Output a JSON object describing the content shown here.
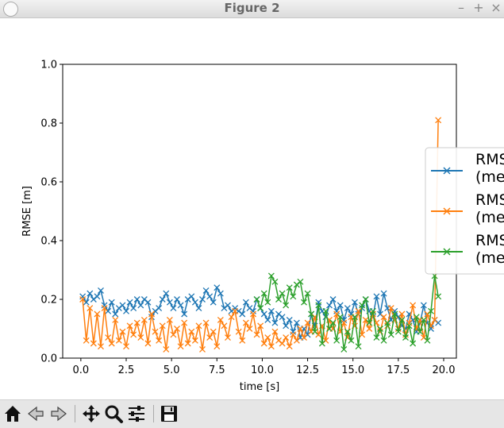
{
  "window": {
    "title": "Figure 2"
  },
  "window_buttons": [
    "–",
    "+",
    "×"
  ],
  "toolbar": {
    "buttons": [
      "home-icon",
      "back-icon",
      "forward-icon",
      "pan-icon",
      "zoom-icon",
      "configure-subplots-icon",
      "save-icon"
    ]
  },
  "chart_data": {
    "type": "line",
    "xlabel": "time [s]",
    "ylabel": "RMSE [m]",
    "xlim": [
      -1.0,
      20.7
    ],
    "ylim": [
      0.0,
      1.0
    ],
    "xticks": [
      "0.0",
      "2.5",
      "5.0",
      "7.5",
      "10.0",
      "12.5",
      "15.0",
      "17.5",
      "20.0"
    ],
    "yticks": [
      "0.0",
      "0.2",
      "0.4",
      "0.6",
      "0.8",
      "1.0"
    ],
    "legend_placement": "right (clipped)",
    "legend_entries": [
      [
        "RMS",
        "(me"
      ],
      [
        "RMS",
        "(me"
      ],
      [
        "RMS",
        "(me"
      ]
    ],
    "colors": [
      "#1f77b4",
      "#ff7f0e",
      "#2ca02c"
    ],
    "series": [
      {
        "x": [
          0.1,
          0.3,
          0.5,
          0.7,
          0.9,
          1.1,
          1.3,
          1.5,
          1.7,
          1.9,
          2.1,
          2.3,
          2.5,
          2.7,
          2.9,
          3.1,
          3.3,
          3.5,
          3.7,
          3.9,
          4.1,
          4.3,
          4.5,
          4.7,
          4.9,
          5.1,
          5.3,
          5.5,
          5.7,
          5.9,
          6.1,
          6.3,
          6.5,
          6.7,
          6.9,
          7.1,
          7.3,
          7.5,
          7.7,
          7.9,
          8.1,
          8.3,
          8.5,
          8.7,
          8.9,
          9.1,
          9.3,
          9.5,
          9.7,
          9.9,
          10.1,
          10.3,
          10.5,
          10.7,
          10.9,
          11.1,
          11.3,
          11.5,
          11.7,
          11.9,
          12.1,
          12.3,
          12.5,
          12.7,
          12.9,
          13.1,
          13.3,
          13.5,
          13.7,
          13.9,
          14.1,
          14.3,
          14.5,
          14.7,
          14.9,
          15.1,
          15.3,
          15.5,
          15.7,
          15.9,
          16.1,
          16.3,
          16.5,
          16.7,
          16.9,
          17.1,
          17.3,
          17.5,
          17.7,
          17.9,
          18.1,
          18.3,
          18.5,
          18.7,
          18.9,
          19.1,
          19.3,
          19.5,
          19.7
        ],
        "y": [
          0.21,
          0.19,
          0.22,
          0.2,
          0.21,
          0.23,
          0.18,
          0.16,
          0.19,
          0.15,
          0.17,
          0.18,
          0.16,
          0.19,
          0.17,
          0.2,
          0.18,
          0.2,
          0.19,
          0.14,
          0.16,
          0.17,
          0.2,
          0.22,
          0.19,
          0.17,
          0.2,
          0.18,
          0.15,
          0.2,
          0.21,
          0.19,
          0.17,
          0.2,
          0.23,
          0.21,
          0.19,
          0.24,
          0.22,
          0.17,
          0.18,
          0.16,
          0.17,
          0.16,
          0.15,
          0.19,
          0.17,
          0.16,
          0.2,
          0.17,
          0.15,
          0.13,
          0.16,
          0.12,
          0.15,
          0.14,
          0.11,
          0.13,
          0.09,
          0.12,
          0.07,
          0.1,
          0.08,
          0.15,
          0.11,
          0.19,
          0.16,
          0.14,
          0.18,
          0.2,
          0.16,
          0.18,
          0.13,
          0.17,
          0.15,
          0.19,
          0.15,
          0.17,
          0.2,
          0.16,
          0.14,
          0.21,
          0.15,
          0.22,
          0.17,
          0.13,
          0.16,
          0.14,
          0.11,
          0.1,
          0.15,
          0.13,
          0.09,
          0.12,
          0.18,
          0.12,
          0.1,
          0.13,
          0.12
        ]
      },
      {
        "x": [
          0.1,
          0.3,
          0.5,
          0.7,
          0.9,
          1.1,
          1.3,
          1.5,
          1.7,
          1.9,
          2.1,
          2.3,
          2.5,
          2.7,
          2.9,
          3.1,
          3.3,
          3.5,
          3.7,
          3.9,
          4.1,
          4.3,
          4.5,
          4.7,
          4.9,
          5.1,
          5.3,
          5.5,
          5.7,
          5.9,
          6.1,
          6.3,
          6.5,
          6.7,
          6.9,
          7.1,
          7.3,
          7.5,
          7.7,
          7.9,
          8.1,
          8.3,
          8.5,
          8.7,
          8.9,
          9.1,
          9.3,
          9.5,
          9.7,
          9.9,
          10.1,
          10.3,
          10.5,
          10.7,
          10.9,
          11.1,
          11.3,
          11.5,
          11.7,
          11.9,
          12.1,
          12.3,
          12.5,
          12.7,
          12.9,
          13.1,
          13.3,
          13.5,
          13.7,
          13.9,
          14.1,
          14.3,
          14.5,
          14.7,
          14.9,
          15.1,
          15.3,
          15.5,
          15.7,
          15.9,
          16.1,
          16.3,
          16.5,
          16.7,
          16.9,
          17.1,
          17.3,
          17.5,
          17.7,
          17.9,
          18.1,
          18.3,
          18.5,
          18.7,
          18.9,
          19.1,
          19.3,
          19.5,
          19.7
        ],
        "y": [
          0.2,
          0.06,
          0.17,
          0.05,
          0.15,
          0.04,
          0.17,
          0.07,
          0.05,
          0.13,
          0.06,
          0.09,
          0.04,
          0.11,
          0.08,
          0.12,
          0.07,
          0.13,
          0.05,
          0.15,
          0.09,
          0.06,
          0.11,
          0.03,
          0.13,
          0.08,
          0.1,
          0.04,
          0.12,
          0.05,
          0.09,
          0.06,
          0.11,
          0.03,
          0.12,
          0.07,
          0.09,
          0.04,
          0.13,
          0.11,
          0.07,
          0.14,
          0.16,
          0.09,
          0.06,
          0.12,
          0.1,
          0.15,
          0.08,
          0.11,
          0.05,
          0.07,
          0.04,
          0.09,
          0.06,
          0.05,
          0.07,
          0.04,
          0.08,
          0.06,
          0.1,
          0.07,
          0.12,
          0.09,
          0.14,
          0.08,
          0.11,
          0.06,
          0.13,
          0.1,
          0.15,
          0.09,
          0.12,
          0.07,
          0.14,
          0.11,
          0.16,
          0.08,
          0.13,
          0.1,
          0.15,
          0.12,
          0.09,
          0.14,
          0.11,
          0.17,
          0.13,
          0.1,
          0.15,
          0.08,
          0.12,
          0.18,
          0.1,
          0.13,
          0.07,
          0.15,
          0.11,
          0.13,
          0.81
        ]
      },
      {
        "x": [
          9.7,
          9.9,
          10.1,
          10.3,
          10.5,
          10.7,
          10.9,
          11.1,
          11.3,
          11.5,
          11.7,
          11.9,
          12.1,
          12.3,
          12.5,
          12.7,
          12.9,
          13.1,
          13.3,
          13.5,
          13.7,
          13.9,
          14.1,
          14.3,
          14.5,
          14.7,
          14.9,
          15.1,
          15.3,
          15.5,
          15.7,
          15.9,
          16.1,
          16.3,
          16.5,
          16.7,
          16.9,
          17.1,
          17.3,
          17.5,
          17.7,
          17.9,
          18.1,
          18.3,
          18.5,
          18.7,
          18.9,
          19.1,
          19.3,
          19.5,
          19.7
        ],
        "y": [
          0.2,
          0.17,
          0.22,
          0.19,
          0.28,
          0.26,
          0.2,
          0.22,
          0.18,
          0.24,
          0.21,
          0.25,
          0.26,
          0.19,
          0.22,
          0.15,
          0.09,
          0.18,
          0.05,
          0.16,
          0.1,
          0.12,
          0.06,
          0.14,
          0.03,
          0.09,
          0.06,
          0.14,
          0.04,
          0.18,
          0.2,
          0.12,
          0.16,
          0.07,
          0.1,
          0.06,
          0.12,
          0.08,
          0.15,
          0.09,
          0.13,
          0.07,
          0.11,
          0.05,
          0.14,
          0.09,
          0.13,
          0.06,
          0.16,
          0.28,
          0.21
        ]
      }
    ]
  }
}
